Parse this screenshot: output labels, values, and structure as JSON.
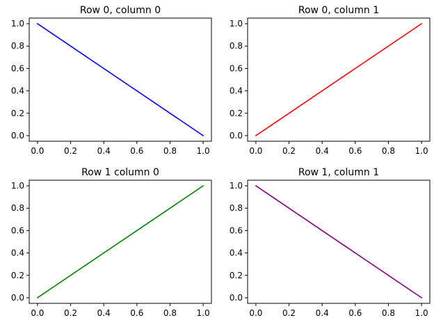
{
  "figure": {
    "background": "#ffffff",
    "layout": "2x2 grid"
  },
  "chart_data": [
    {
      "type": "line",
      "row": 0,
      "column": 0,
      "title": "Row 0, column 0",
      "xlabel": "",
      "ylabel": "",
      "xlim": [
        -0.05,
        1.05
      ],
      "ylim": [
        -0.05,
        1.05
      ],
      "xticks": [
        0.0,
        0.2,
        0.4,
        0.6,
        0.8,
        1.0
      ],
      "xtick_labels": [
        "0.0",
        "0.2",
        "0.4",
        "0.6",
        "0.8",
        "1.0"
      ],
      "yticks": [
        0.0,
        0.2,
        0.4,
        0.6,
        0.8,
        1.0
      ],
      "ytick_labels": [
        "0.0",
        "0.2",
        "0.4",
        "0.6",
        "0.8",
        "1.0"
      ],
      "grid": false,
      "series": [
        {
          "name": "line",
          "color": "#0000ff",
          "x": [
            0,
            1
          ],
          "y": [
            1,
            0
          ]
        }
      ]
    },
    {
      "type": "line",
      "row": 0,
      "column": 1,
      "title": "Row 0, column 1",
      "xlabel": "",
      "ylabel": "",
      "xlim": [
        -0.05,
        1.05
      ],
      "ylim": [
        -0.05,
        1.05
      ],
      "xticks": [
        0.0,
        0.2,
        0.4,
        0.6,
        0.8,
        1.0
      ],
      "xtick_labels": [
        "0.0",
        "0.2",
        "0.4",
        "0.6",
        "0.8",
        "1.0"
      ],
      "yticks": [
        0.0,
        0.2,
        0.4,
        0.6,
        0.8,
        1.0
      ],
      "ytick_labels": [
        "0.0",
        "0.2",
        "0.4",
        "0.6",
        "0.8",
        "1.0"
      ],
      "grid": false,
      "series": [
        {
          "name": "line",
          "color": "#ff0000",
          "x": [
            0,
            1
          ],
          "y": [
            0,
            1
          ]
        }
      ]
    },
    {
      "type": "line",
      "row": 1,
      "column": 0,
      "title": "Row 1 column 0",
      "xlabel": "",
      "ylabel": "",
      "xlim": [
        -0.05,
        1.05
      ],
      "ylim": [
        -0.05,
        1.05
      ],
      "xticks": [
        0.0,
        0.2,
        0.4,
        0.6,
        0.8,
        1.0
      ],
      "xtick_labels": [
        "0.0",
        "0.2",
        "0.4",
        "0.6",
        "0.8",
        "1.0"
      ],
      "yticks": [
        0.0,
        0.2,
        0.4,
        0.6,
        0.8,
        1.0
      ],
      "ytick_labels": [
        "0.0",
        "0.2",
        "0.4",
        "0.6",
        "0.8",
        "1.0"
      ],
      "grid": false,
      "series": [
        {
          "name": "line",
          "color": "#008000",
          "x": [
            0,
            1
          ],
          "y": [
            0,
            1
          ]
        }
      ]
    },
    {
      "type": "line",
      "row": 1,
      "column": 1,
      "title": "Row 1, column 1",
      "xlabel": "",
      "ylabel": "",
      "xlim": [
        -0.05,
        1.05
      ],
      "ylim": [
        -0.05,
        1.05
      ],
      "xticks": [
        0.0,
        0.2,
        0.4,
        0.6,
        0.8,
        1.0
      ],
      "xtick_labels": [
        "0.0",
        "0.2",
        "0.4",
        "0.6",
        "0.8",
        "1.0"
      ],
      "yticks": [
        0.0,
        0.2,
        0.4,
        0.6,
        0.8,
        1.0
      ],
      "ytick_labels": [
        "0.0",
        "0.2",
        "0.4",
        "0.6",
        "0.8",
        "1.0"
      ],
      "grid": false,
      "series": [
        {
          "name": "line",
          "color": "#800080",
          "x": [
            0,
            1
          ],
          "y": [
            1,
            0
          ]
        }
      ]
    }
  ]
}
